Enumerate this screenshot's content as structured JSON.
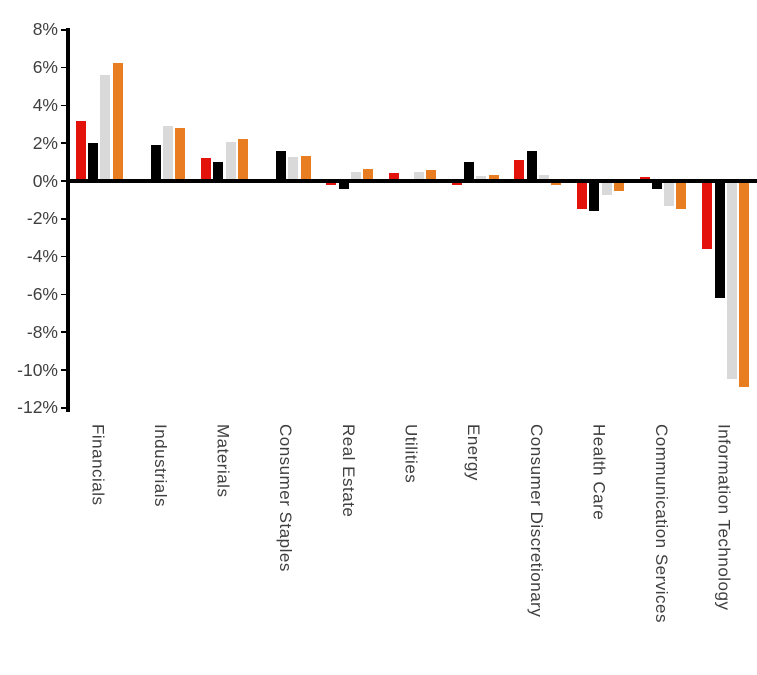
{
  "chart_data": {
    "type": "bar",
    "title": "",
    "xlabel": "",
    "ylabel": "",
    "categories": [
      "Financials",
      "Industrials",
      "Materials",
      "Consumer Staples",
      "Real Estate",
      "Utilities",
      "Energy",
      "Consumer Discretionary",
      "Health Care",
      "Communication Services",
      "Information Technology"
    ],
    "series": [
      {
        "name": "red",
        "color": "#e3120b",
        "values": [
          3.2,
          0.0,
          1.2,
          0.0,
          -0.2,
          0.4,
          -0.2,
          1.1,
          -1.5,
          0.2,
          -3.6
        ]
      },
      {
        "name": "black",
        "color": "#000000",
        "values": [
          2.0,
          1.9,
          1.0,
          1.6,
          -0.4,
          0.0,
          1.0,
          1.6,
          -1.6,
          -0.4,
          -6.2
        ]
      },
      {
        "name": "gray",
        "color": "#d9d9d9",
        "values": [
          5.6,
          2.9,
          2.05,
          1.25,
          0.5,
          0.45,
          0.25,
          0.3,
          -0.75,
          -1.3,
          -10.5
        ]
      },
      {
        "name": "orange",
        "color": "#e97d22",
        "values": [
          6.25,
          2.8,
          2.2,
          1.3,
          0.65,
          0.6,
          0.3,
          -0.2,
          -0.55,
          -1.5,
          -10.9
        ]
      }
    ],
    "ylim": [
      -12,
      8
    ],
    "ytick_step": 2,
    "yticks": [
      "8%",
      "6%",
      "4%",
      "2%",
      "0%",
      "-2%",
      "-4%",
      "-6%",
      "-8%",
      "-10%",
      "-12%"
    ],
    "ytick_values": [
      8,
      6,
      4,
      2,
      0,
      -2,
      -4,
      -6,
      -8,
      -10,
      -12
    ],
    "grid": false,
    "legend": false,
    "x_label_rotation": "vertical-top-to-bottom",
    "axis_color": "#000000",
    "label_color": "#3f3f3f",
    "background": "#ffffff"
  }
}
